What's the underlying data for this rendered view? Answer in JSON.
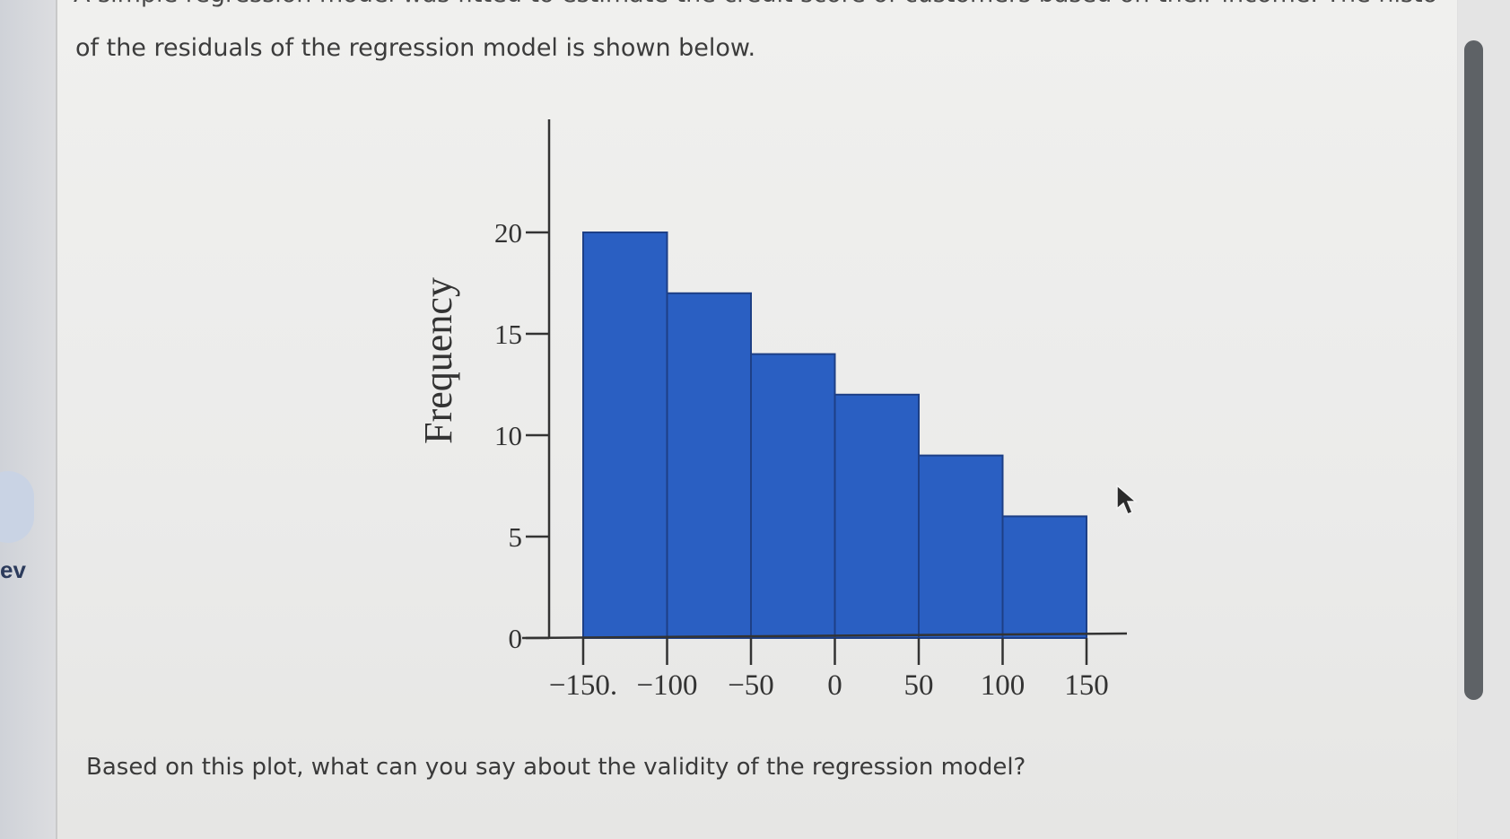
{
  "page": {
    "intro_line1": "A simple regression model was fitted to estimate the credit score of customers based on their income. The histogram",
    "intro_line2": "of the residuals of the regression model is shown below.",
    "question": "Based on this plot, what can you say about the validity of the regression model?",
    "left_fragment": "ev"
  },
  "icons": {
    "cursor": "mouse-pointer-icon"
  },
  "colors": {
    "bar_fill": "#2a5fc2",
    "bar_edge": "#1d3f86",
    "axis": "#333333",
    "scrollbar_thumb": "#5e6266"
  },
  "chart_data": {
    "type": "bar",
    "title": "",
    "xlabel": "",
    "ylabel": "Frequency",
    "bins": [
      [
        -150,
        -100
      ],
      [
        -100,
        -50
      ],
      [
        -50,
        0
      ],
      [
        0,
        50
      ],
      [
        50,
        100
      ],
      [
        100,
        150
      ]
    ],
    "values": [
      20,
      17,
      14,
      12,
      9,
      6
    ],
    "x_ticks": [
      -150,
      -100,
      -50,
      0,
      50,
      100,
      150
    ],
    "x_tick_labels": [
      "−150.",
      "−100",
      "−50",
      "0",
      "50",
      "100",
      "150"
    ],
    "y_ticks": [
      0,
      5,
      10,
      15,
      20
    ],
    "y_tick_labels": [
      "0",
      "5",
      "10",
      "15",
      "20"
    ],
    "xlim": [
      -150,
      150
    ],
    "ylim": [
      0,
      20
    ],
    "grid": false,
    "legend": "none"
  }
}
